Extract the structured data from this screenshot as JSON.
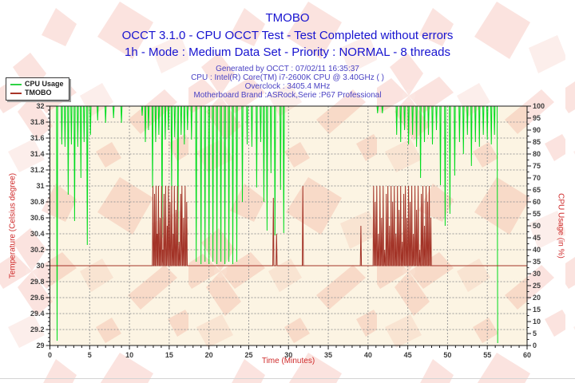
{
  "header": {
    "title": "TMOBO",
    "subtitle1": "OCCT 3.1.0 - CPU OCCT Test - Test Completed without errors",
    "subtitle2": "1h - Mode : Medium Data Set - Priority : NORMAL - 8 threads",
    "meta1": "Generated by OCCT : 07/02/11 16:35:37",
    "meta2": "CPU : Intel(R) Core(TM) i7-2600K CPU @ 3.40GHz ( )",
    "meta3": "Overclock : 3405.4 MHz",
    "meta4": "Motherboard Brand :ASRock,Serie :P67 Professional"
  },
  "legend": {
    "items": [
      {
        "label": "CPU Usage",
        "color": "#2ed245"
      },
      {
        "label": "TMOBO",
        "color": "#a83528"
      }
    ]
  },
  "colors": {
    "plot_background": "#fcf4e3",
    "grid": "#9b9b9b",
    "frame": "#1a1a1a",
    "tick_label": "#3d3d3d",
    "axis_title": "#cf2a2a",
    "watermark": "#e25038"
  },
  "chart_data": {
    "type": "line",
    "title": "TMOBO",
    "x_axis": {
      "label": "Time (Minutes)",
      "min": 0,
      "max": 60,
      "major_step": 5,
      "minor_step": 1
    },
    "y_left": {
      "label": "Temperature (Celsius degree)",
      "min": 29,
      "max": 32,
      "major_step": 0.2,
      "minor_step": 0.05
    },
    "y_right": {
      "label": "CPU Usage (in %)",
      "min": 0,
      "max": 100,
      "major_step": 5,
      "minor_step": 2.5
    },
    "grid": {
      "horizontal_step_left_axis": 0.2,
      "vertical_step_minutes": 5,
      "style": "dashed"
    },
    "legend_position": "top-left",
    "series": [
      {
        "name": "CPU Usage",
        "axis": "right",
        "color": "#00dc1e",
        "unit": "%",
        "baseline": 100,
        "x_start": 0,
        "x_end": 56.3,
        "terminal_drop": true,
        "spike_width": 0.14,
        "spikes": [
          [
            0.9,
            2
          ],
          [
            1.5,
            84
          ],
          [
            1.9,
            83
          ],
          [
            2.3,
            63
          ],
          [
            2.7,
            84
          ],
          [
            3.1,
            52
          ],
          [
            3.5,
            83
          ],
          [
            3.9,
            70
          ],
          [
            4.3,
            85
          ],
          [
            4.7,
            42
          ],
          [
            5.1,
            88
          ],
          [
            6.0,
            94
          ],
          [
            7.0,
            93
          ],
          [
            8.0,
            95
          ],
          [
            9.0,
            93
          ],
          [
            11.6,
            96
          ],
          [
            12.0,
            85
          ],
          [
            12.4,
            90
          ],
          [
            12.9,
            66
          ],
          [
            13.3,
            85
          ],
          [
            13.7,
            88
          ],
          [
            14.1,
            45
          ],
          [
            14.5,
            86
          ],
          [
            14.9,
            90
          ],
          [
            15.3,
            65
          ],
          [
            15.7,
            87
          ],
          [
            16.1,
            42
          ],
          [
            16.5,
            88
          ],
          [
            16.9,
            84
          ],
          [
            17.3,
            90
          ],
          [
            17.8,
            86
          ],
          [
            18.4,
            35
          ],
          [
            19.0,
            34
          ],
          [
            19.5,
            35
          ],
          [
            20.0,
            34
          ],
          [
            20.5,
            35
          ],
          [
            21.0,
            34
          ],
          [
            21.5,
            35
          ],
          [
            22.0,
            34
          ],
          [
            22.5,
            35
          ],
          [
            23.0,
            34
          ],
          [
            23.5,
            35
          ],
          [
            24.2,
            60
          ],
          [
            24.8,
            84
          ],
          [
            25.4,
            83
          ],
          [
            26.0,
            66
          ],
          [
            26.5,
            85
          ],
          [
            26.9,
            60
          ],
          [
            27.3,
            48
          ],
          [
            27.8,
            72
          ],
          [
            28.3,
            46
          ],
          [
            29.0,
            65
          ],
          [
            29.4,
            47
          ],
          [
            41.2,
            97
          ],
          [
            41.8,
            97
          ],
          [
            43.6,
            88
          ],
          [
            44.1,
            85
          ],
          [
            44.6,
            90
          ],
          [
            45.1,
            84
          ],
          [
            45.6,
            88
          ],
          [
            46.1,
            83
          ],
          [
            46.6,
            70
          ],
          [
            47.1,
            85
          ],
          [
            47.6,
            88
          ],
          [
            48.1,
            84
          ],
          [
            48.6,
            90
          ],
          [
            49.1,
            67
          ],
          [
            49.7,
            50
          ],
          [
            50.3,
            55
          ],
          [
            50.9,
            71
          ],
          [
            51.5,
            85
          ],
          [
            52.0,
            80
          ],
          [
            52.5,
            88
          ],
          [
            53.0,
            75
          ],
          [
            53.5,
            85
          ],
          [
            54.0,
            83
          ],
          [
            54.5,
            88
          ],
          [
            55.0,
            86
          ],
          [
            55.5,
            84
          ],
          [
            55.9,
            88
          ],
          [
            56.3,
            1
          ]
        ]
      },
      {
        "name": "TMOBO",
        "axis": "left",
        "color": "#a33327",
        "unit": "Celsius",
        "baseline": 30,
        "x_start": 0,
        "x_end": 60,
        "terminal_drop": false,
        "spike_width": 0.14,
        "spikes": [
          [
            12.95,
            31
          ],
          [
            13.15,
            30.9
          ],
          [
            13.35,
            31
          ],
          [
            13.5,
            30.4
          ],
          [
            13.65,
            31
          ],
          [
            13.85,
            30.6
          ],
          [
            14.05,
            31
          ],
          [
            14.2,
            30.2
          ],
          [
            14.35,
            30.9
          ],
          [
            14.55,
            31
          ],
          [
            14.75,
            30.5
          ],
          [
            14.9,
            31
          ],
          [
            15.1,
            30.8
          ],
          [
            15.3,
            31
          ],
          [
            15.5,
            30.4
          ],
          [
            15.65,
            31
          ],
          [
            15.85,
            30.7
          ],
          [
            16.05,
            31
          ],
          [
            16.25,
            30.3
          ],
          [
            16.45,
            30.9
          ],
          [
            16.6,
            31
          ],
          [
            16.8,
            30.6
          ],
          [
            17.0,
            31
          ],
          [
            17.2,
            30.8
          ],
          [
            28.1,
            30.85
          ],
          [
            28.5,
            30.4
          ],
          [
            31.8,
            31
          ],
          [
            39.1,
            30.5
          ],
          [
            40.7,
            31
          ],
          [
            40.9,
            30.8
          ],
          [
            41.1,
            31
          ],
          [
            41.3,
            30.4
          ],
          [
            41.5,
            31
          ],
          [
            41.7,
            30.6
          ],
          [
            41.9,
            31
          ],
          [
            42.1,
            30.2
          ],
          [
            42.3,
            30.9
          ],
          [
            42.5,
            31
          ],
          [
            42.7,
            30.5
          ],
          [
            42.9,
            31
          ],
          [
            43.1,
            30.8
          ],
          [
            43.3,
            31
          ],
          [
            43.5,
            30.4
          ],
          [
            43.7,
            31
          ],
          [
            43.9,
            30.7
          ],
          [
            44.1,
            31
          ],
          [
            44.3,
            30.3
          ],
          [
            44.5,
            30.9
          ],
          [
            44.7,
            31
          ],
          [
            44.9,
            30.6
          ],
          [
            45.1,
            31
          ],
          [
            45.3,
            30.8
          ],
          [
            45.5,
            31
          ],
          [
            45.7,
            30.4
          ],
          [
            45.9,
            31
          ],
          [
            46.1,
            30.7
          ],
          [
            46.3,
            31
          ],
          [
            46.5,
            30.2
          ],
          [
            46.7,
            30.9
          ],
          [
            46.9,
            31
          ],
          [
            47.1,
            30.5
          ],
          [
            47.3,
            31
          ],
          [
            47.5,
            30.8
          ],
          [
            47.7,
            31
          ],
          [
            47.9,
            30.6
          ]
        ]
      }
    ]
  }
}
